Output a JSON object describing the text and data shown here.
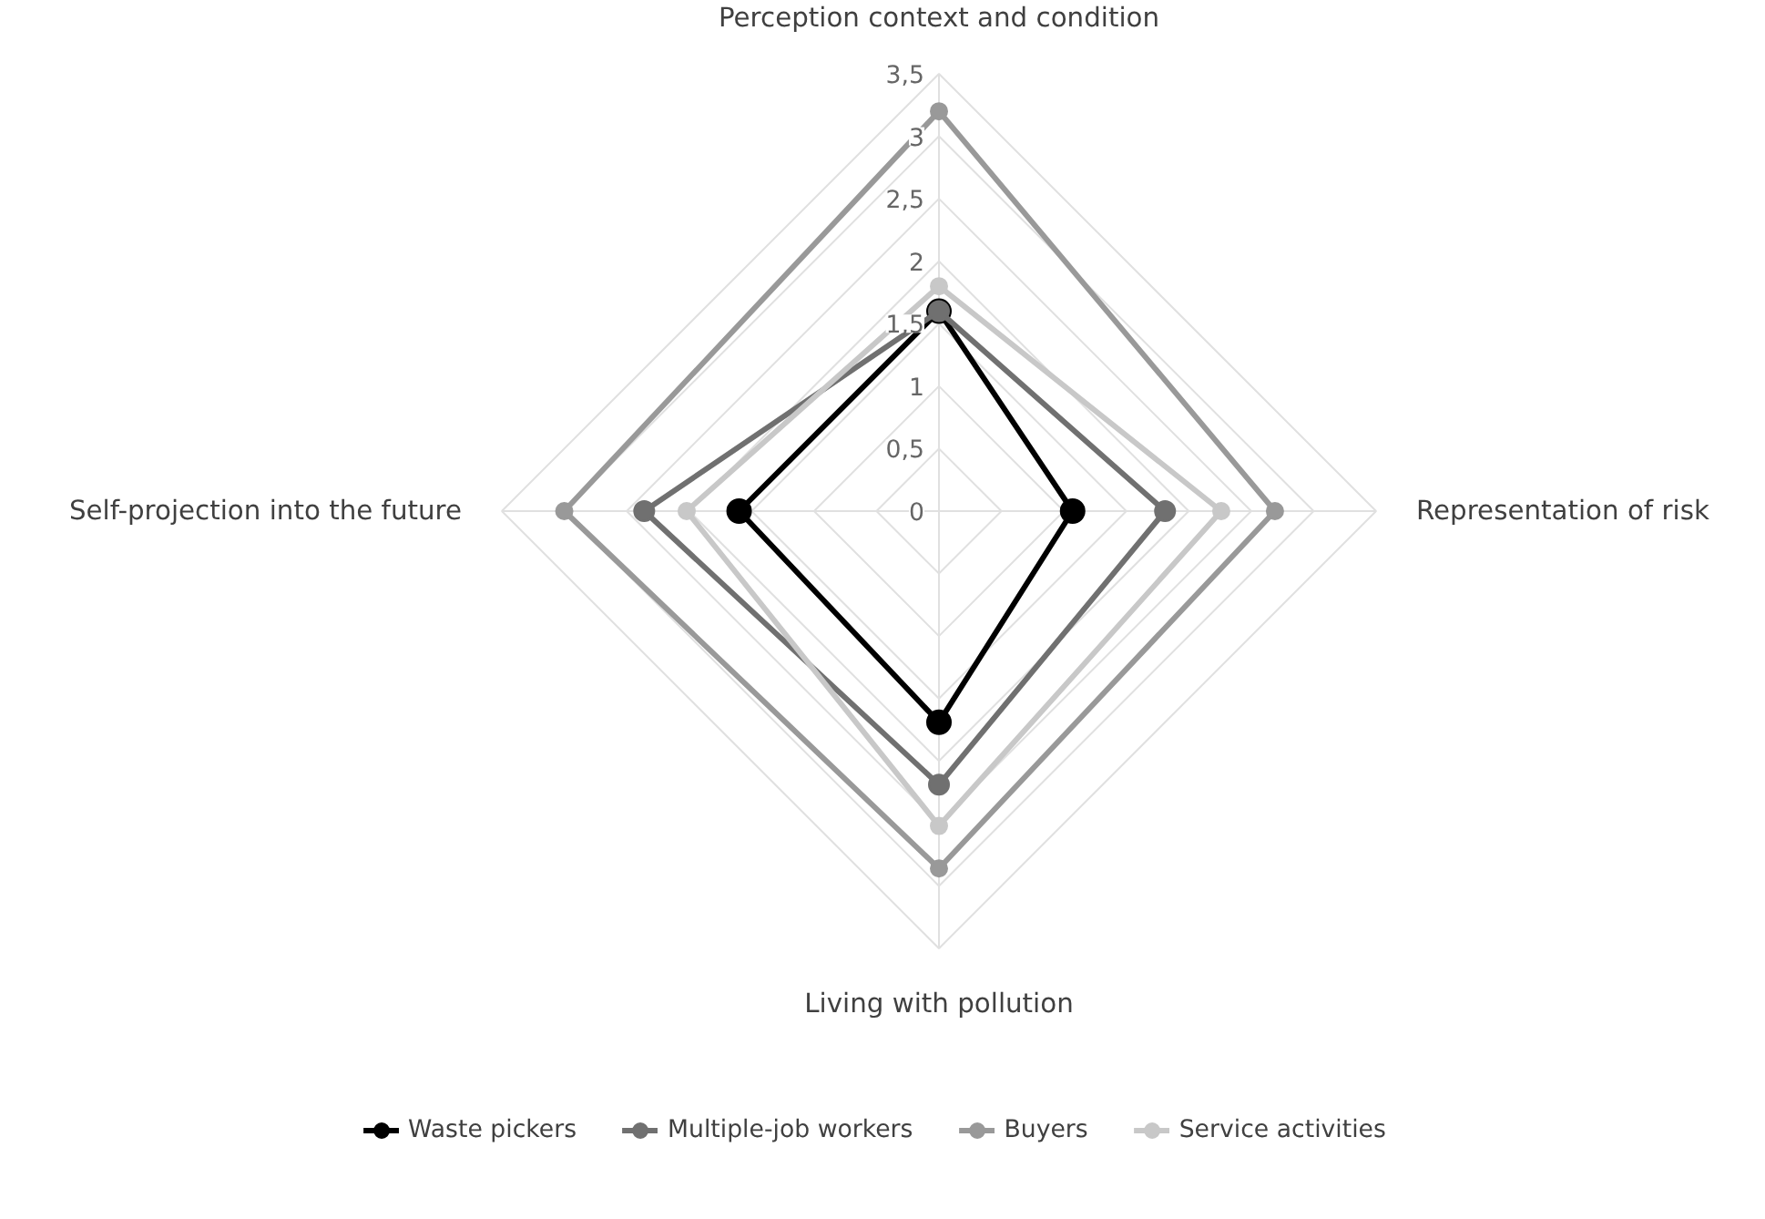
{
  "chart_data": {
    "type": "radar",
    "categories": [
      "Perception context and condition",
      "Representation of risk",
      "Living with pollution",
      "Self-projection into the future"
    ],
    "ylim": [
      0,
      3.5
    ],
    "yticks": [
      {
        "value": 0,
        "label": "0"
      },
      {
        "value": 0.5,
        "label": "0,5"
      },
      {
        "value": 1,
        "label": "1"
      },
      {
        "value": 1.5,
        "label": "1,5"
      },
      {
        "value": 2,
        "label": "2"
      },
      {
        "value": 2.5,
        "label": "2,5"
      },
      {
        "value": 3,
        "label": "3"
      },
      {
        "value": 3.5,
        "label": "3,5"
      }
    ],
    "grid": true,
    "legend": "bottom",
    "marker": "circle",
    "line_style": "solid",
    "series": [
      {
        "name": "Waste pickers",
        "color": "#000000",
        "values": [
          1.6,
          1.07,
          1.69,
          1.6
        ]
      },
      {
        "name": "Multiple-job workers",
        "color": "#707070",
        "values": [
          1.6,
          1.81,
          2.19,
          2.36
        ]
      },
      {
        "name": "Buyers",
        "color": "#999999",
        "values": [
          3.2,
          2.69,
          2.86,
          3.0
        ]
      },
      {
        "name": "Service activities",
        "color": "#c8c8c8",
        "values": [
          1.8,
          2.26,
          2.52,
          2.02
        ]
      }
    ]
  }
}
